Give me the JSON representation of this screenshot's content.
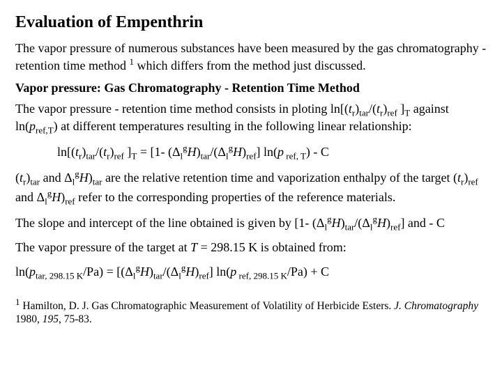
{
  "title": "Evaluation of Empenthrin",
  "para1_a": "The vapor pressure of numerous substances have been measured by the  gas chromatography - retention time method ",
  "para1_b": " which differs from the method just discussed.",
  "subhead": "Vapor pressure: Gas Chromatography - Retention Time Method",
  "para2_a": "The vapor pressure - retention time method consists in ploting ln[(",
  "para2_b": " against ln(",
  "para2_c": ") at different temperatures resulting in the following linear relationship:",
  "eq1_a": "ln[(",
  "eq1_b": " = [1- (Δ",
  "eq1_c": "] ln(",
  "eq1_d": ")  -  C",
  "para3_a": " are the relative retention time and vaporization enthalpy of the  target (",
  "para3_b": " refer to the corresponding properties of the reference materials.",
  "para4_a": "The slope and intercept of the line obtained is given by [1- (Δ",
  "para4_b": "] and - C",
  "para5_a": "The vapor pressure of the target at ",
  "para5_b": " = 298.15 K is obtained from:",
  "eq2_a": "ln(",
  "eq2_b": "/Pa) =  [(Δ",
  "eq2_c": "] ln(",
  "eq2_d": "/Pa)  + C",
  "fn_a": " Hamilton, D. J. Gas Chromatographic Measurement of Volatility of Herbicide Esters. ",
  "fn_b": "J. Chromatography",
  "fn_c": " 1980, ",
  "fn_d": "195",
  "fn_e": ", 75-83.",
  "tr": "t",
  "r": "r",
  "tar": "tar",
  "ref": "ref",
  "T": "T",
  "p": "p",
  "refcomma": "ref,",
  "l": "l",
  "g": "g",
  "H": "H",
  "one": "1",
  "refT": " ref, T",
  "tar298": "tar, 298.15 K",
  "ref298": " ref, 298.15 K",
  "and": " and Δ",
  "and2": "  and Δ",
  "paren": "(",
  "closep": ")",
  "slash": "/(",
  "slashD": "/(Δ",
  "closeb": " ]",
  "Titalic": "T"
}
